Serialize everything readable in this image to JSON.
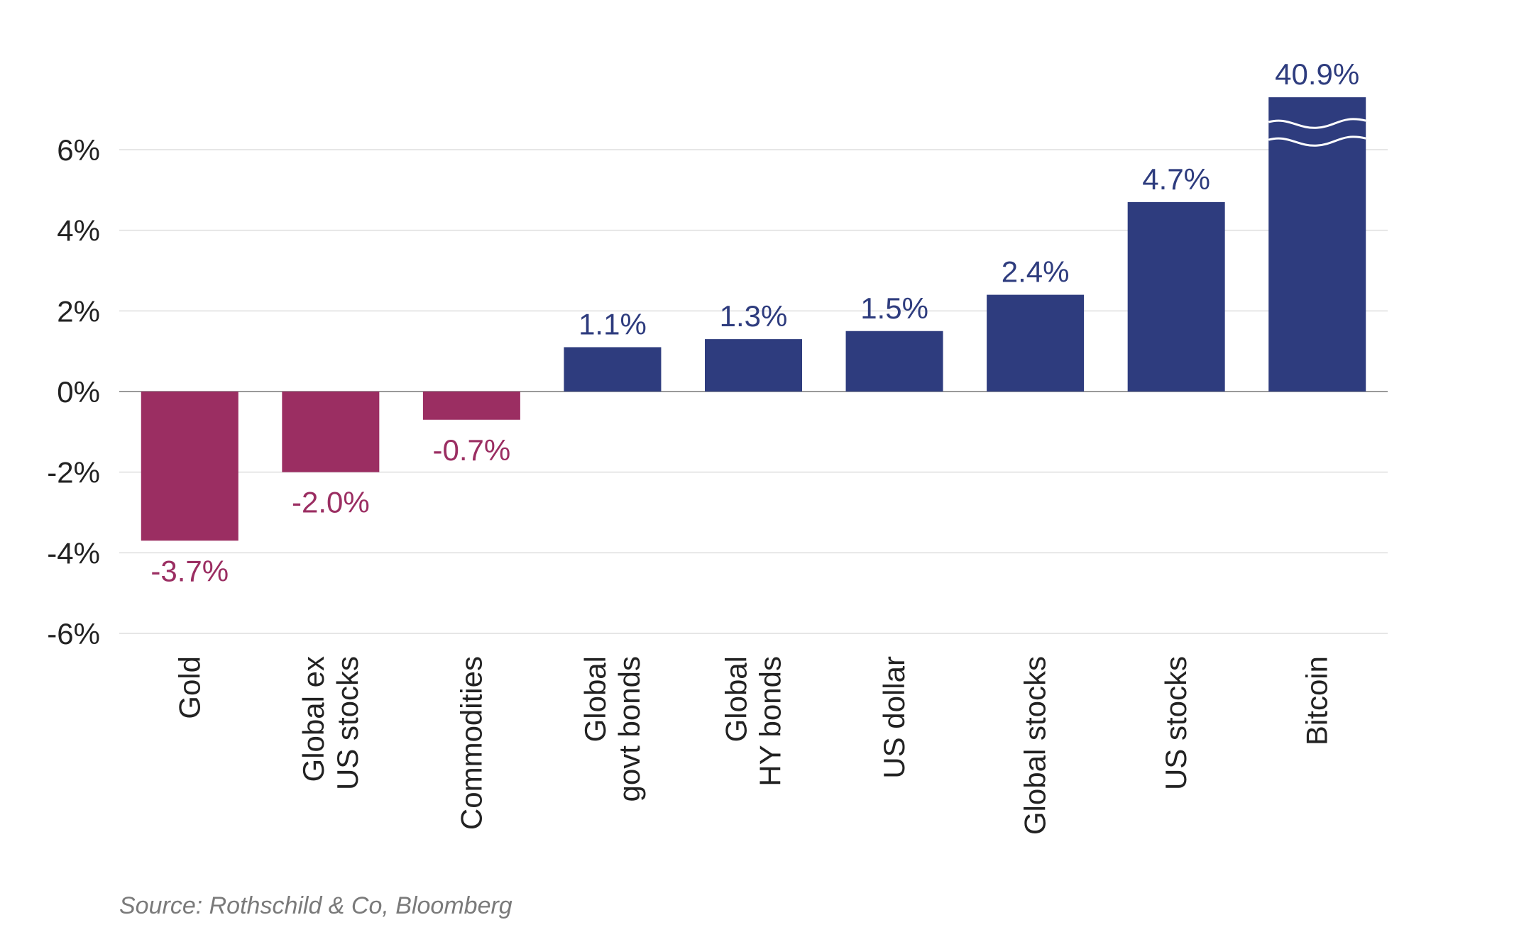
{
  "chart_data": {
    "type": "bar",
    "title": "",
    "xlabel": "",
    "ylabel": "",
    "ylim": [
      -6,
      7.3
    ],
    "yticks": [
      6,
      4,
      2,
      0,
      -2,
      -4,
      -6
    ],
    "ytick_labels": [
      "6%",
      "4%",
      "2%",
      "0%",
      "-2%",
      "-4%",
      "-6%"
    ],
    "grid": true,
    "categories": [
      "Gold",
      "Global ex US stocks",
      "Commodities",
      "Global govt bonds",
      "Global HY bonds",
      "US dollar",
      "Global stocks",
      "US stocks",
      "Bitcoin"
    ],
    "category_label_lines": [
      [
        "Gold"
      ],
      [
        "Global ex",
        "US stocks"
      ],
      [
        "Commodities"
      ],
      [
        "Global",
        "govt bonds"
      ],
      [
        "Global",
        "HY bonds"
      ],
      [
        "US dollar"
      ],
      [
        "Global  stocks"
      ],
      [
        "US  stocks"
      ],
      [
        "Bitcoin"
      ]
    ],
    "values": [
      -3.7,
      -2.0,
      -0.7,
      1.1,
      1.3,
      1.5,
      2.4,
      4.7,
      40.9
    ],
    "value_labels": [
      "-3.7%",
      "-2.0%",
      "-0.7%",
      "1.1%",
      "1.3%",
      "1.5%",
      "2.4%",
      "4.7%",
      "40.9%"
    ],
    "truncated": {
      "index": 8,
      "display_top": 7.3
    },
    "colors": {
      "positive": "#2e3c7e",
      "negative": "#9b2e62",
      "grid": "#dedede",
      "axis": "#9a9a9a",
      "tick_text": "#222222"
    }
  },
  "source": "Source: Rothschild & Co, Bloomberg"
}
